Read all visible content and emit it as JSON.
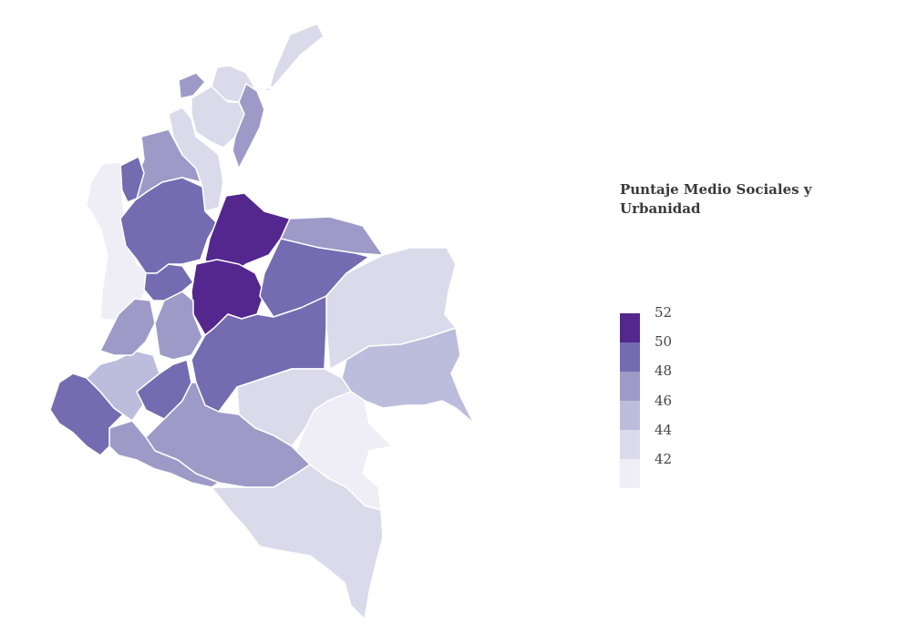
{
  "legend": {
    "title": "Puntaje Medio Sociales y Urbanidad",
    "tick_labels": [
      "52",
      "50",
      "48",
      "46",
      "44",
      "42"
    ],
    "colors": [
      "#54278f",
      "#756bb1",
      "#9e9ac8",
      "#bcbddc",
      "#dadaeb",
      "#efedf5"
    ]
  },
  "map_data": {
    "type": "choropleth",
    "variable_scale": [
      42,
      44,
      46,
      48,
      50,
      52
    ],
    "region_levels": {
      "north_caribbean": 44,
      "atlantico_west": 48,
      "magdalena": 44,
      "cesar": 48,
      "bolivar": 44,
      "sucre_cordoba": 48,
      "uraba_coast": 50,
      "choco": 42,
      "antioquia": 50,
      "santander": 52,
      "boyaca_cundinamarca": 52,
      "arauca": 48,
      "casanare": 50,
      "vichada": 44,
      "meta": 50,
      "guainia": 46,
      "guaviare": 44,
      "vaupes": 42,
      "caqueta": 48,
      "amazonas": 44,
      "putumayo": 48,
      "narino": 50,
      "cauca": 46,
      "huila": 50,
      "valle": 48,
      "tolima": 48,
      "eje_cafetero": 50
    }
  }
}
